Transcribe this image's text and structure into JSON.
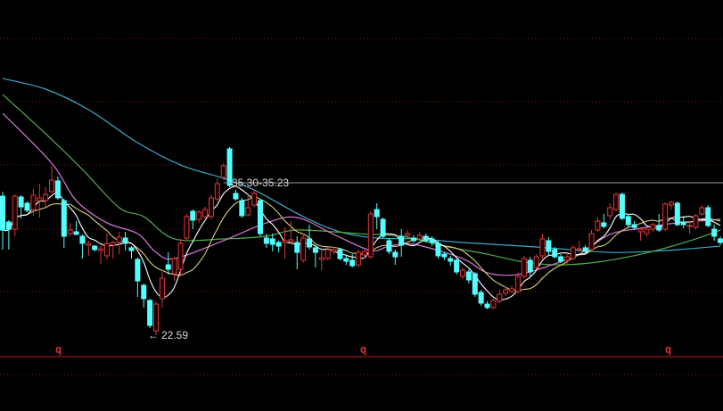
{
  "chart_data": {
    "type": "candlestick",
    "grid": true,
    "colors": {
      "background": "#000000",
      "up": "#d23a3a",
      "down": "#54ffff",
      "grid": "#7a1a1a",
      "marker": "#d03030",
      "ma_short": "#ffffff",
      "ma_mid": "#d8d070",
      "ma_purple": "#d878d8",
      "ma_green": "#4cb04c",
      "ma_cyan": "#3ea8c8",
      "level_line": "#9a9a9a"
    },
    "candle_format": [
      "open",
      "high",
      "low",
      "close"
    ],
    "candles": [
      [
        34.18,
        34.56,
        29.73,
        31.36
      ],
      [
        32.03,
        32.18,
        29.73,
        31.43
      ],
      [
        31.43,
        34.33,
        30.84,
        34.18
      ],
      [
        34.11,
        34.26,
        32.33,
        33.29
      ],
      [
        33.59,
        33.74,
        32.85,
        33.0
      ],
      [
        33.07,
        34.78,
        32.55,
        34.26
      ],
      [
        33.81,
        35.22,
        32.4,
        34.04
      ],
      [
        33.81,
        34.93,
        33.29,
        34.33
      ],
      [
        34.56,
        36.71,
        34.41,
        35.52
      ],
      [
        35.45,
        35.82,
        33.89,
        34.04
      ],
      [
        33.81,
        33.96,
        29.88,
        30.84
      ],
      [
        31.06,
        31.96,
        30.84,
        31.36
      ],
      [
        31.21,
        32.1,
        30.99,
        30.99
      ],
      [
        30.84,
        30.99,
        28.98,
        30.25
      ],
      [
        30.1,
        30.47,
        29.21,
        30.25
      ],
      [
        30.02,
        30.1,
        29.58,
        29.73
      ],
      [
        29.65,
        30.1,
        28.54,
        29.8
      ],
      [
        29.21,
        31.06,
        28.91,
        30.25
      ],
      [
        30.1,
        30.47,
        28.98,
        30.32
      ],
      [
        30.32,
        31.21,
        29.35,
        30.77
      ],
      [
        30.69,
        31.21,
        29.65,
        30.25
      ],
      [
        29.88,
        30.02,
        28.98,
        29.65
      ],
      [
        28.91,
        29.06,
        25.79,
        27.12
      ],
      [
        26.75,
        26.9,
        24.9,
        25.64
      ],
      [
        25.49,
        25.64,
        23.19,
        23.41
      ],
      [
        22.96,
        25.42,
        22.59,
        25.19
      ],
      [
        25.64,
        27.87,
        24.9,
        27.35
      ],
      [
        28.46,
        29.5,
        27.65,
        28.09
      ],
      [
        27.72,
        29.13,
        27.12,
        28.98
      ],
      [
        28.09,
        30.62,
        27.5,
        30.25
      ],
      [
        30.69,
        32.7,
        30.47,
        32.48
      ],
      [
        32.92,
        33.07,
        31.43,
        32.18
      ],
      [
        32.25,
        33.0,
        31.96,
        32.85
      ],
      [
        32.48,
        33.29,
        32.18,
        33.07
      ],
      [
        32.48,
        34.33,
        32.25,
        34.04
      ],
      [
        33.96,
        35.67,
        33.74,
        35.22
      ],
      [
        35.74,
        36.93,
        35.52,
        36.71
      ],
      [
        38.12,
        38.27,
        34.93,
        35.08
      ],
      [
        34.41,
        34.7,
        33.81,
        33.96
      ],
      [
        33.81,
        34.04,
        32.4,
        32.55
      ],
      [
        32.62,
        34.41,
        32.48,
        33.22
      ],
      [
        33.44,
        34.7,
        33.29,
        34.41
      ],
      [
        33.81,
        33.96,
        30.84,
        31.06
      ],
      [
        30.69,
        31.06,
        29.88,
        30.25
      ],
      [
        30.62,
        31.06,
        29.58,
        30.17
      ],
      [
        30.32,
        30.47,
        29.5,
        30.02
      ],
      [
        30.32,
        31.58,
        28.98,
        30.47
      ],
      [
        30.39,
        32.1,
        30.1,
        30.55
      ],
      [
        30.32,
        30.84,
        28.09,
        29.5
      ],
      [
        28.84,
        31.06,
        28.61,
        30.69
      ],
      [
        30.62,
        31.81,
        29.73,
        29.95
      ],
      [
        29.88,
        30.1,
        28.24,
        29.5
      ],
      [
        28.91,
        29.88,
        28.02,
        29.06
      ],
      [
        28.98,
        29.95,
        28.84,
        29.73
      ],
      [
        29.58,
        29.95,
        29.35,
        29.73
      ],
      [
        29.73,
        29.88,
        28.84,
        28.98
      ],
      [
        28.98,
        29.35,
        28.46,
        28.76
      ],
      [
        28.84,
        29.35,
        28.24,
        28.39
      ],
      [
        28.46,
        29.73,
        28.24,
        29.5
      ],
      [
        29.28,
        29.73,
        28.98,
        29.58
      ],
      [
        29.13,
        32.92,
        28.98,
        32.7
      ],
      [
        33.07,
        33.59,
        31.43,
        32.48
      ],
      [
        32.25,
        32.4,
        30.69,
        30.84
      ],
      [
        30.47,
        30.69,
        29.35,
        29.58
      ],
      [
        29.5,
        29.73,
        28.46,
        29.13
      ],
      [
        30.84,
        31.43,
        29.13,
        30.1
      ],
      [
        30.91,
        31.36,
        30.62,
        31.06
      ],
      [
        30.69,
        30.91,
        30.32,
        30.47
      ],
      [
        30.62,
        31.21,
        30.47,
        30.91
      ],
      [
        30.84,
        31.06,
        30.32,
        30.47
      ],
      [
        30.62,
        30.84,
        30.02,
        30.32
      ],
      [
        30.25,
        30.47,
        28.98,
        29.21
      ],
      [
        29.35,
        29.5,
        28.84,
        29.13
      ],
      [
        28.98,
        29.21,
        28.39,
        28.76
      ],
      [
        28.84,
        28.98,
        27.65,
        27.87
      ],
      [
        27.5,
        28.24,
        27.27,
        28.02
      ],
      [
        27.87,
        28.09,
        26.9,
        27.2
      ],
      [
        27.72,
        27.87,
        25.79,
        26.01
      ],
      [
        26.16,
        26.38,
        25.05,
        25.27
      ],
      [
        25.19,
        25.42,
        24.75,
        24.9
      ],
      [
        24.9,
        25.64,
        24.75,
        25.49
      ],
      [
        25.42,
        26.38,
        25.27,
        26.01
      ],
      [
        26.09,
        26.61,
        25.86,
        26.38
      ],
      [
        26.23,
        26.75,
        26.09,
        26.46
      ],
      [
        26.23,
        27.8,
        26.09,
        27.5
      ],
      [
        27.5,
        29.21,
        27.35,
        28.98
      ],
      [
        28.84,
        29.13,
        27.5,
        27.87
      ],
      [
        28.24,
        29.35,
        28.02,
        29.13
      ],
      [
        29.21,
        31.06,
        28.98,
        30.62
      ],
      [
        30.47,
        30.77,
        29.21,
        29.58
      ],
      [
        29.73,
        29.95,
        28.98,
        29.13
      ],
      [
        29.13,
        29.35,
        28.61,
        28.76
      ],
      [
        28.84,
        29.35,
        28.46,
        29.13
      ],
      [
        28.98,
        30.1,
        28.84,
        29.88
      ],
      [
        29.73,
        30.47,
        29.58,
        29.8
      ],
      [
        29.88,
        30.1,
        29.35,
        29.58
      ],
      [
        29.73,
        31.36,
        29.58,
        31.06
      ],
      [
        31.36,
        32.4,
        31.21,
        32.1
      ],
      [
        31.96,
        32.7,
        31.51,
        31.66
      ],
      [
        32.55,
        33.59,
        32.25,
        33.22
      ],
      [
        33.07,
        34.48,
        32.92,
        34.33
      ],
      [
        34.33,
        34.48,
        32.18,
        32.33
      ],
      [
        32.48,
        32.7,
        31.58,
        31.81
      ],
      [
        31.81,
        32.1,
        31.36,
        31.58
      ],
      [
        31.21,
        31.58,
        30.47,
        31.43
      ],
      [
        31.06,
        31.58,
        30.84,
        31.43
      ],
      [
        31.43,
        31.96,
        31.21,
        31.81
      ],
      [
        31.73,
        32.7,
        31.21,
        31.36
      ],
      [
        31.43,
        33.66,
        31.28,
        33.52
      ],
      [
        33.44,
        33.81,
        33.07,
        33.66
      ],
      [
        33.59,
        33.74,
        31.66,
        31.81
      ],
      [
        32.03,
        32.55,
        31.51,
        31.81
      ],
      [
        31.66,
        32.1,
        31.06,
        31.73
      ],
      [
        31.58,
        32.7,
        31.36,
        32.55
      ],
      [
        32.7,
        33.44,
        32.55,
        33.22
      ],
      [
        33.22,
        33.44,
        31.58,
        31.73
      ],
      [
        31.43,
        31.81,
        30.47,
        30.84
      ],
      [
        30.62,
        30.84,
        30.1,
        30.32
      ]
    ],
    "computed_ma_periods": [
      5,
      10
    ],
    "ma_lines_sampled": {
      "purple": [
        [
          0,
          41.09
        ],
        [
          8,
          36.93
        ],
        [
          12,
          33.81
        ],
        [
          17,
          31.96
        ],
        [
          22,
          31.06
        ],
        [
          25,
          29.5
        ],
        [
          28,
          28.98
        ],
        [
          36,
          30.47
        ],
        [
          43,
          31.96
        ],
        [
          48,
          32.4
        ],
        [
          54,
          30.99
        ],
        [
          60,
          29.65
        ],
        [
          63,
          30.02
        ],
        [
          67,
          30.17
        ],
        [
          75,
          28.98
        ],
        [
          79,
          27.8
        ],
        [
          84,
          27.65
        ],
        [
          90,
          28.54
        ],
        [
          94,
          29.35
        ],
        [
          99,
          30.99
        ],
        [
          104,
          31.51
        ],
        [
          110,
          31.96
        ],
        [
          117,
          32.25
        ]
      ],
      "green": [
        [
          0,
          42.65
        ],
        [
          7,
          39.39
        ],
        [
          13,
          36.41
        ],
        [
          19,
          33.22
        ],
        [
          23,
          32.48
        ],
        [
          28,
          30.62
        ],
        [
          36,
          30.62
        ],
        [
          43,
          30.84
        ],
        [
          48,
          31.36
        ],
        [
          58,
          31.06
        ],
        [
          65,
          30.84
        ],
        [
          72,
          30.02
        ],
        [
          79,
          29.35
        ],
        [
          85,
          28.69
        ],
        [
          91,
          28.46
        ],
        [
          98,
          28.76
        ],
        [
          106,
          29.58
        ],
        [
          113,
          30.62
        ],
        [
          117,
          31.36
        ]
      ],
      "cyan": [
        [
          0,
          43.99
        ],
        [
          7,
          43.1
        ],
        [
          14,
          41.39
        ],
        [
          22,
          38.64
        ],
        [
          29,
          36.78
        ],
        [
          36,
          35.67
        ],
        [
          41,
          34.7
        ],
        [
          49,
          32.48
        ],
        [
          55,
          31.21
        ],
        [
          61,
          30.69
        ],
        [
          68,
          30.62
        ],
        [
          75,
          30.32
        ],
        [
          87,
          29.95
        ],
        [
          99,
          29.5
        ],
        [
          108,
          29.65
        ],
        [
          117,
          30.02
        ]
      ]
    },
    "level_line": {
      "price": 35.3,
      "from_index": 36
    },
    "annotations": {
      "high_label": "35.30-35.23",
      "low_label": "22.59",
      "low_arrow": "←"
    },
    "period_markers": [
      "q",
      "q",
      "q"
    ],
    "title": "",
    "xlabel": "",
    "ylabel": ""
  }
}
